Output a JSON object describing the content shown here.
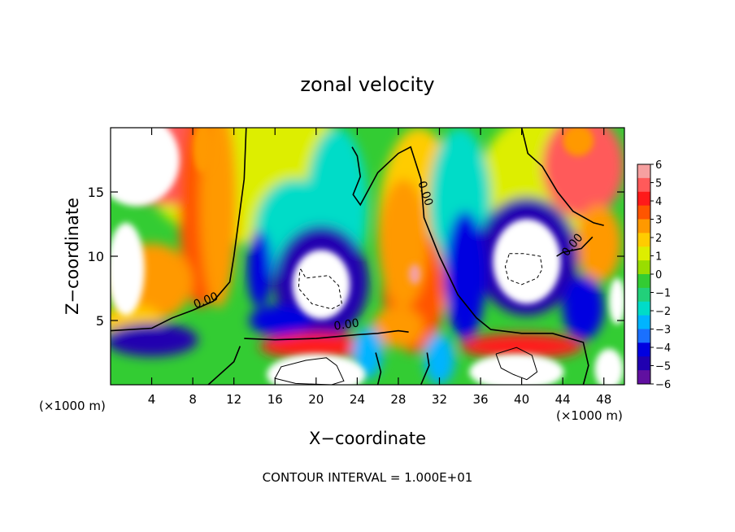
{
  "chart_data": {
    "type": "heatmap",
    "title": "zonal velocity",
    "xlabel": "X−coordinate",
    "ylabel": "Z−coordinate",
    "x_unit_left": "(×1000 m)",
    "x_unit_right": "(×1000 m)",
    "footer": "CONTOUR INTERVAL = 1.000E+01",
    "xlim": [
      0,
      50
    ],
    "ylim": [
      0,
      20
    ],
    "x_ticks": [
      4,
      8,
      12,
      16,
      20,
      24,
      28,
      32,
      36,
      40,
      44,
      48
    ],
    "x_tick_labels": [
      "4",
      "8",
      "12",
      "16",
      "20",
      "24",
      "28",
      "32",
      "36",
      "40",
      "44",
      "48"
    ],
    "y_ticks": [
      5,
      10,
      15
    ],
    "y_tick_labels": [
      "5",
      "10",
      "15"
    ],
    "colorbar": {
      "ticks": [
        6,
        5,
        4,
        3,
        2,
        1,
        0,
        -1,
        -2,
        -3,
        -4,
        -5,
        -6
      ],
      "tick_labels": [
        "6",
        "5",
        "4",
        "3",
        "2",
        "1",
        "0",
        "−1",
        "−2",
        "−3",
        "−4",
        "−5",
        "−6"
      ],
      "colors": [
        "#f6a0a0",
        "#ff5a5a",
        "#ff1a1a",
        "#ff5500",
        "#ff9900",
        "#ffcc00",
        "#ddee00",
        "#99dd00",
        "#33cc33",
        "#22d07a",
        "#00dcc8",
        "#00b4ff",
        "#1a70ff",
        "#0000e0",
        "#2000b0",
        "#6010a0"
      ]
    },
    "contour_labels": [
      {
        "text": "0.00",
        "x": 9.4,
        "z": 6.3
      },
      {
        "text": "0.00",
        "x": 23.0,
        "z": 4.4
      },
      {
        "text": "0.00",
        "x": 30.3,
        "z": 14.8
      },
      {
        "text": "0.00",
        "x": 45.2,
        "z": 10.7
      }
    ],
    "zero_contour_lines": [
      [
        [
          0,
          4.2
        ],
        [
          4,
          4.4
        ],
        [
          6,
          5.2
        ],
        [
          8,
          5.8
        ],
        [
          10,
          6.5
        ],
        [
          11.6,
          8
        ],
        [
          12,
          10
        ],
        [
          12.5,
          13
        ],
        [
          13,
          16
        ],
        [
          13.2,
          20
        ]
      ],
      [
        [
          13,
          3.6
        ],
        [
          16,
          3.5
        ],
        [
          20,
          3.6
        ],
        [
          24,
          3.9
        ],
        [
          26,
          4.0
        ],
        [
          28,
          4.2
        ],
        [
          29,
          4.1
        ]
      ],
      [
        [
          23.5,
          18.5
        ],
        [
          24,
          17.8
        ],
        [
          24.3,
          16.2
        ],
        [
          23.6,
          14.8
        ],
        [
          24.3,
          14.0
        ],
        [
          26,
          16.5
        ],
        [
          28,
          18
        ],
        [
          29.2,
          18.5
        ],
        [
          30.2,
          16
        ],
        [
          30.5,
          13
        ],
        [
          32,
          10
        ],
        [
          33.8,
          7
        ],
        [
          35.6,
          5.2
        ],
        [
          37,
          4.3
        ],
        [
          40,
          4.0
        ],
        [
          43,
          4.0
        ],
        [
          46,
          3.3
        ],
        [
          46.5,
          1.5
        ],
        [
          46,
          0
        ]
      ],
      [
        [
          40,
          20
        ],
        [
          40.6,
          18
        ],
        [
          42,
          17
        ],
        [
          43.5,
          15
        ],
        [
          45,
          13.5
        ],
        [
          47,
          12.6
        ],
        [
          48,
          12.4
        ]
      ],
      [
        [
          43.4,
          10
        ],
        [
          44,
          10.3
        ],
        [
          45.8,
          10.6
        ],
        [
          46.9,
          11.5
        ]
      ],
      [
        [
          9.5,
          0
        ],
        [
          12,
          1.8
        ],
        [
          12.6,
          3.0
        ]
      ],
      [
        [
          26,
          0
        ],
        [
          26.3,
          1
        ],
        [
          25.8,
          2.5
        ]
      ],
      [
        [
          30.2,
          0
        ],
        [
          31,
          1.5
        ],
        [
          30.8,
          2.5
        ]
      ]
    ],
    "negative_contours": [
      [
        [
          18.5,
          9.0
        ],
        [
          19,
          8.3
        ],
        [
          21.2,
          8.5
        ],
        [
          22.2,
          7.7
        ],
        [
          22.5,
          6.3
        ],
        [
          21.5,
          5.9
        ],
        [
          19.6,
          6.3
        ],
        [
          18.3,
          7.5
        ],
        [
          18.4,
          8.8
        ],
        [
          18.5,
          9.0
        ]
      ],
      [
        [
          38.8,
          10.2
        ],
        [
          40.2,
          10.2
        ],
        [
          41.8,
          10.0
        ],
        [
          42,
          9.0
        ],
        [
          41.5,
          8.3
        ],
        [
          40,
          7.8
        ],
        [
          38.7,
          8.2
        ],
        [
          38.4,
          9.2
        ],
        [
          38.8,
          10.2
        ]
      ]
    ],
    "positive_contours": [
      [
        [
          16,
          0.5
        ],
        [
          16.6,
          1.4
        ],
        [
          19,
          1.9
        ],
        [
          21,
          2.1
        ],
        [
          22,
          1.5
        ],
        [
          22.7,
          0.3
        ],
        [
          21.5,
          0
        ],
        [
          18,
          0.1
        ],
        [
          16,
          0.5
        ]
      ],
      [
        [
          37.5,
          2.4
        ],
        [
          39.5,
          2.9
        ],
        [
          41,
          2.3
        ],
        [
          41.5,
          1.0
        ],
        [
          40.5,
          0.4
        ],
        [
          39.2,
          0.8
        ],
        [
          38,
          1.3
        ],
        [
          37.5,
          2.4
        ]
      ]
    ],
    "flow_features": {
      "background": 0,
      "white_regions_high": [
        {
          "x": 2.5,
          "z": 17.5,
          "rx": 4.2,
          "rz": 3.6
        },
        {
          "x": 1.5,
          "z": 9,
          "rx": 1.8,
          "rz": 3.6
        },
        {
          "x": 20.5,
          "z": 7.8,
          "rx": 2.8,
          "rz": 2.7
        },
        {
          "x": 40.5,
          "z": 9.6,
          "rx": 3.3,
          "rz": 3.3
        },
        {
          "x": 20,
          "z": 0.8,
          "rx": 4.8,
          "rz": 1.6
        },
        {
          "x": 39.5,
          "z": 1.0,
          "rx": 4.6,
          "rz": 1.4
        },
        {
          "x": 48.5,
          "z": 1.2,
          "rx": 1.4,
          "rz": 1.6
        },
        {
          "x": 49.3,
          "z": 6.5,
          "rx": 0.8,
          "rz": 1.8
        }
      ]
    }
  }
}
